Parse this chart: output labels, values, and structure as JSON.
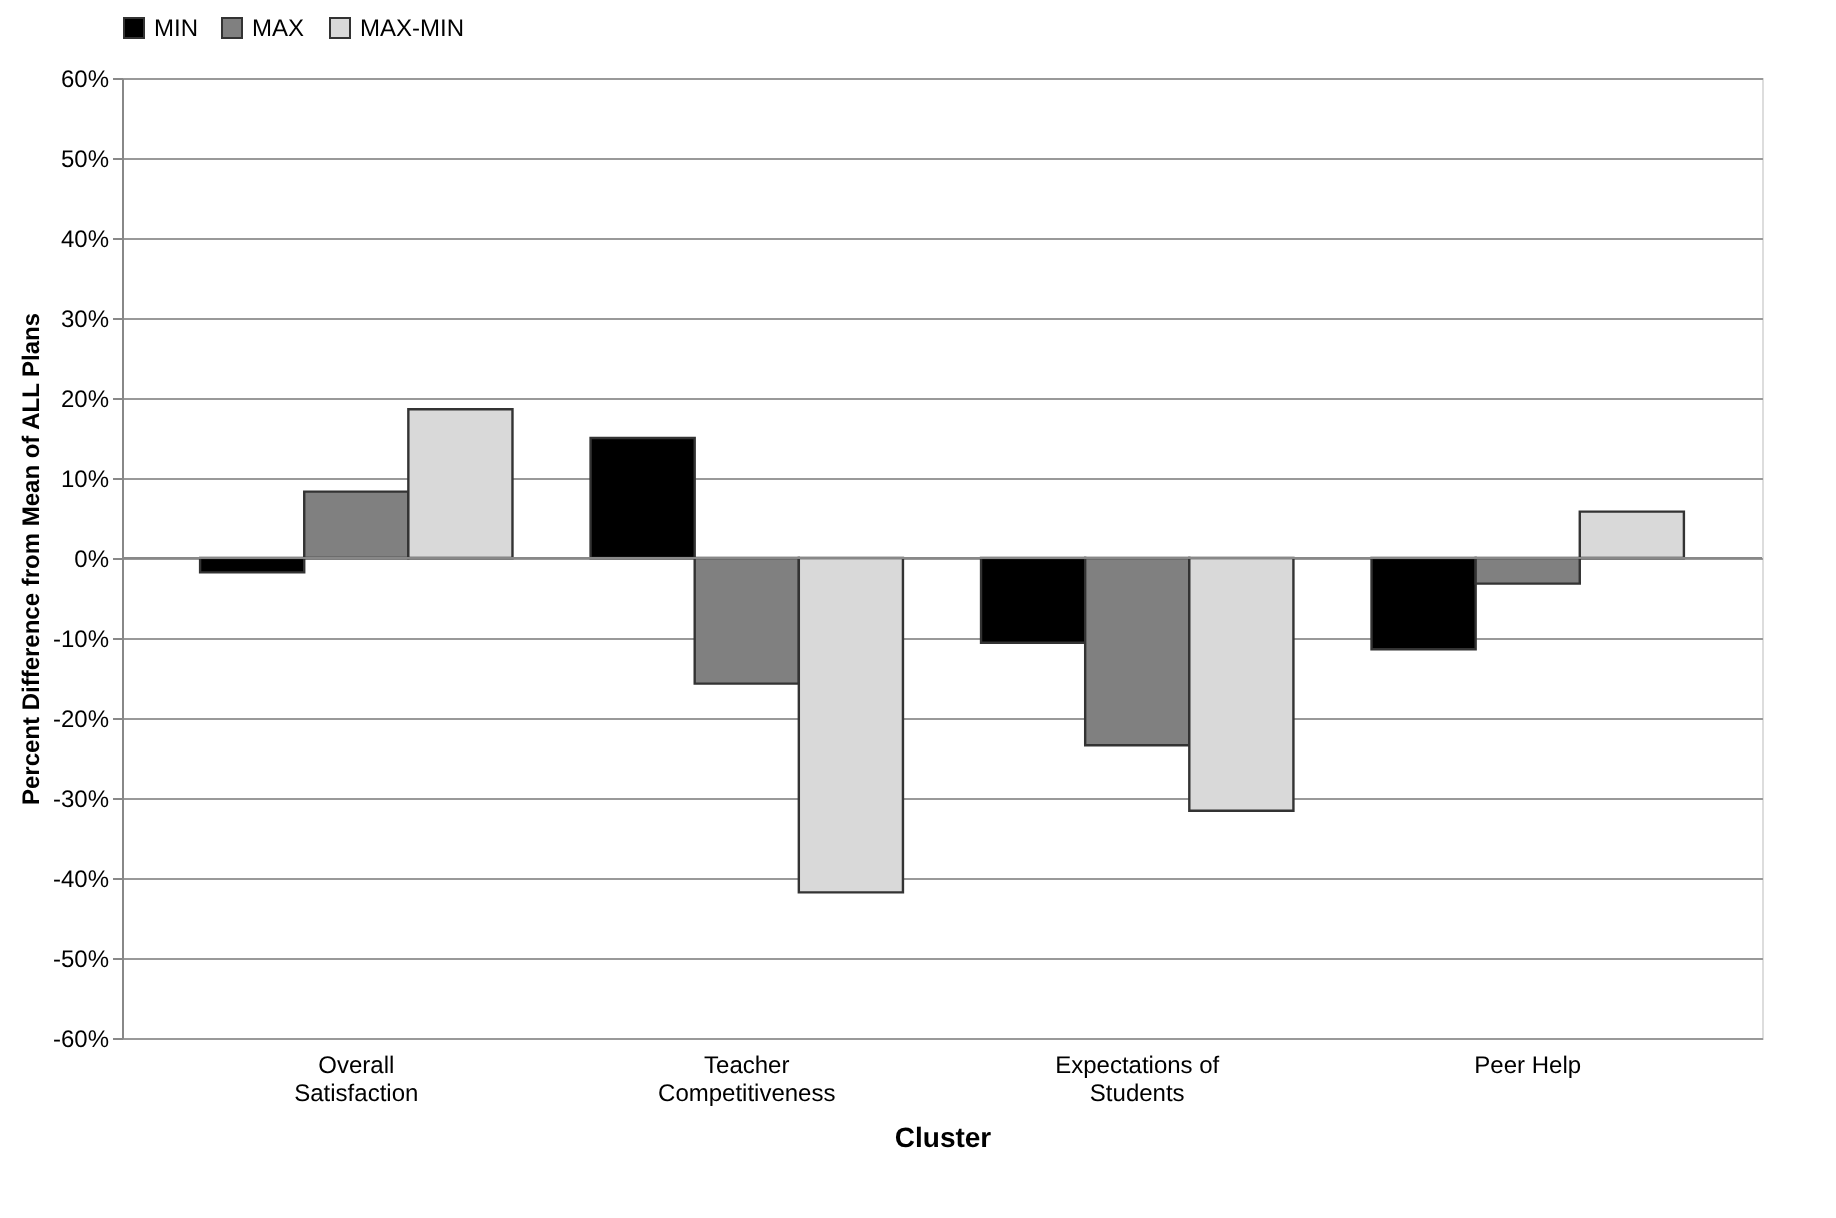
{
  "chart_data": {
    "type": "bar",
    "xlabel": "Cluster",
    "ylabel": "Percent Difference from Mean of ALL Plans",
    "categories": [
      "Overall Satisfaction",
      "Teacher Competitiveness",
      "Expectations of Students",
      "Peer Help"
    ],
    "series": [
      {
        "name": "MIN",
        "color": "#000000",
        "values": [
          -1.8,
          15.0,
          -10.6,
          -11.4
        ]
      },
      {
        "name": "MAX",
        "color": "#808080",
        "values": [
          8.3,
          -15.7,
          -23.4,
          -3.2
        ]
      },
      {
        "name": "MAX-MIN",
        "color": "#d9d9d9",
        "values": [
          18.6,
          -41.8,
          -31.6,
          5.8
        ]
      }
    ],
    "ylim": [
      -60,
      60
    ],
    "yticks": [
      {
        "value": -60,
        "label": "-60%"
      },
      {
        "value": -50,
        "label": "-50%"
      },
      {
        "value": -40,
        "label": "-40%"
      },
      {
        "value": -30,
        "label": "-30%"
      },
      {
        "value": -20,
        "label": "-20%"
      },
      {
        "value": -10,
        "label": "-10%"
      },
      {
        "value": 0,
        "label": "0%"
      },
      {
        "value": 10,
        "label": "10%"
      },
      {
        "value": 20,
        "label": "20%"
      },
      {
        "value": 30,
        "label": "30%"
      },
      {
        "value": 40,
        "label": "40%"
      },
      {
        "value": 50,
        "label": "50%"
      },
      {
        "value": 60,
        "label": "60%"
      }
    ],
    "grid": "y",
    "legend": "top"
  }
}
